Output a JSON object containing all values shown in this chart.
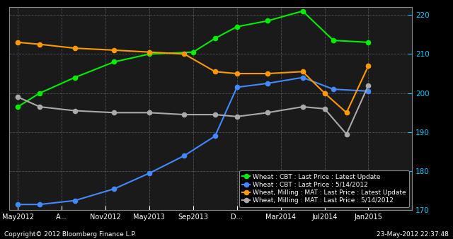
{
  "background_color": "#000000",
  "plot_bg_color": "#1a1a1a",
  "text_color": "#ffffff",
  "ytick_color": "#00ccff",
  "xtick_color": "#ffffff",
  "grid_color": "#555555",
  "ylim": [
    170,
    222
  ],
  "yticks": [
    170,
    180,
    190,
    200,
    210,
    220
  ],
  "x_labels": [
    "May2012",
    "A...",
    "Nov2012",
    "May2013",
    "Sep2013",
    "D...",
    "Mar2014",
    "Jul2014",
    "Jan2015",
    ""
  ],
  "xlabel_bottom": "Copyright© 2012 Bloomberg Finance L.P.",
  "xlabel_right": "23-May-2012 22:37:48",
  "green_x": [
    0,
    0.5,
    1.3,
    2.2,
    3.0,
    4.0,
    4.5,
    5.0,
    5.7,
    6.5,
    7.2,
    8.0
  ],
  "green_y": [
    196.5,
    200,
    204,
    208,
    210,
    210.5,
    214,
    217,
    218.5,
    221,
    213.5,
    213.0
  ],
  "blue_x": [
    0,
    0.5,
    1.3,
    2.2,
    3.0,
    3.8,
    4.5,
    5.0,
    5.7,
    6.5,
    7.2,
    8.0
  ],
  "blue_y": [
    171.5,
    171.5,
    172.5,
    175.5,
    179.5,
    184,
    189,
    201.5,
    202.5,
    204,
    201,
    200.5
  ],
  "orange_x": [
    0,
    0.5,
    1.3,
    2.2,
    3.0,
    3.8,
    4.5,
    5.0,
    5.7,
    6.5,
    7.0,
    7.5,
    8.0
  ],
  "orange_y": [
    213,
    212.5,
    211.5,
    211,
    210.5,
    210,
    205.5,
    205,
    205,
    205.5,
    200,
    195,
    207
  ],
  "gray_x": [
    0,
    0.5,
    1.3,
    2.2,
    3.0,
    3.8,
    4.5,
    5.0,
    5.7,
    6.5,
    7.0,
    7.5,
    8.0
  ],
  "gray_y": [
    199,
    196.5,
    195.5,
    195,
    195,
    194.5,
    194.5,
    194,
    195,
    196.5,
    196,
    189.5,
    202
  ],
  "legend_labels": [
    "Wheat : CBT : Last Price : Latest Update",
    "Wheat : CBT : Last Price : 5/14/2012",
    "Wheat, Milling : MAT : Last Price : Latest Update",
    "Wheat, Milling : MAT : Last Price : 5/14/2012"
  ],
  "legend_colors": [
    "#00ee00",
    "#4488ff",
    "#ff9900",
    "#aaaaaa"
  ]
}
